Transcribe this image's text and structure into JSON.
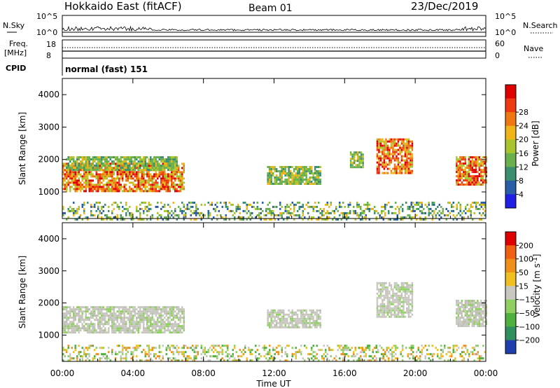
{
  "header": {
    "title": "Hokkaido East (fitACF)",
    "beam": "Beam 01",
    "date": "23/Dec/2019"
  },
  "nsky": {
    "left_label": "N.Sky",
    "right_label": "N.Search",
    "left_ticks": [
      "10^5",
      "10^0"
    ],
    "right_ticks": [
      "10^5",
      "10^0"
    ]
  },
  "freq": {
    "left_label_1": "Freq.",
    "left_label_2": "[MHz]",
    "left_ticks": [
      "18",
      "8"
    ],
    "right_label": "Nave",
    "right_ticks": [
      "60",
      "0"
    ]
  },
  "cpid": {
    "label": "CPID",
    "value": "normal (fast) 151"
  },
  "time_axis": {
    "label": "Time UT",
    "ticks": [
      "00:00",
      "04:00",
      "08:00",
      "12:00",
      "16:00",
      "20:00",
      "00:00"
    ],
    "range_hours": [
      0,
      24
    ]
  },
  "chart_data": [
    {
      "type": "heatmap",
      "title": "",
      "xlabel": "Time UT",
      "ylabel": "Slant Range [km]",
      "x_range_hours": [
        0,
        24
      ],
      "ylim": [
        180,
        4500
      ],
      "yticks": [
        1000,
        2000,
        3000,
        4000
      ],
      "colorbar": {
        "label": "Power [dB]",
        "ticks": [
          "4",
          "8",
          "12",
          "16",
          "20",
          "24",
          "28"
        ],
        "colors": [
          "#1f1fe6",
          "#2a5fa8",
          "#3b8f6f",
          "#6ab04c",
          "#a8c62c",
          "#f0b418",
          "#f07810",
          "#ee3a10",
          "#e00000"
        ]
      },
      "echo_regions": [
        {
          "t0": 0.0,
          "t1": 6.9,
          "r0": 1050,
          "r1": 1900,
          "level": "strong"
        },
        {
          "t0": 0.2,
          "t1": 6.5,
          "r0": 1700,
          "r1": 2100,
          "level": "medium"
        },
        {
          "t0": 11.6,
          "t1": 14.6,
          "r0": 1250,
          "r1": 1800,
          "level": "medium"
        },
        {
          "t0": 16.3,
          "t1": 17.0,
          "r0": 1750,
          "r1": 2250,
          "level": "medium"
        },
        {
          "t0": 17.8,
          "t1": 19.8,
          "r0": 1600,
          "r1": 2650,
          "level": "strong"
        },
        {
          "t0": 22.3,
          "t1": 24.0,
          "r0": 1250,
          "r1": 2100,
          "level": "strong"
        },
        {
          "t0": 0.0,
          "t1": 24.0,
          "r0": 180,
          "r1": 700,
          "level": "weak"
        }
      ]
    },
    {
      "type": "heatmap",
      "title": "",
      "xlabel": "Time UT",
      "ylabel": "Slant Range [km]",
      "x_range_hours": [
        0,
        24
      ],
      "ylim": [
        180,
        4500
      ],
      "yticks": [
        1000,
        2000,
        3000,
        4000
      ],
      "colorbar": {
        "label": "Velocity [m s^-1]",
        "ticks": [
          "200",
          "100",
          "50",
          "15",
          "−15",
          "−50",
          "−100",
          "−200"
        ],
        "colors": [
          "#1f3fb0",
          "#2f8f5f",
          "#4fb040",
          "#90d060",
          "#c8c8c0",
          "#f0c020",
          "#f09018",
          "#f06010",
          "#e00000"
        ]
      },
      "echo_regions": [
        {
          "t0": 0.0,
          "t1": 6.9,
          "r0": 1050,
          "r1": 1900,
          "level": "ground"
        },
        {
          "t0": 11.6,
          "t1": 14.6,
          "r0": 1250,
          "r1": 1800,
          "level": "ground"
        },
        {
          "t0": 17.8,
          "t1": 19.8,
          "r0": 1600,
          "r1": 2650,
          "level": "ground"
        },
        {
          "t0": 22.3,
          "t1": 24.0,
          "r0": 1250,
          "r1": 2100,
          "level": "ground"
        },
        {
          "t0": 0.0,
          "t1": 24.0,
          "r0": 180,
          "r1": 700,
          "level": "mixed"
        }
      ]
    }
  ]
}
